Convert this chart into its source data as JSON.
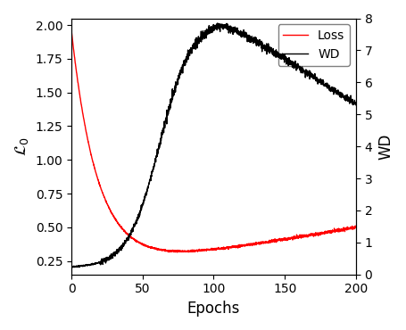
{
  "title": "",
  "xlabel": "Epochs",
  "ylabel_left": "$\\mathcal{L}_0$",
  "ylabel_right": "WD",
  "xlim": [
    0,
    200
  ],
  "ylim_left": [
    0.15,
    2.05
  ],
  "ylim_right": [
    0,
    8
  ],
  "left_yticks": [
    0.25,
    0.5,
    0.75,
    1.0,
    1.25,
    1.5,
    1.75,
    2.0
  ],
  "right_yticks": [
    0,
    1,
    2,
    3,
    4,
    5,
    6,
    7,
    8
  ],
  "xticks": [
    0,
    50,
    100,
    150,
    200
  ],
  "loss_color": "#ff0000",
  "wd_color": "#000000",
  "legend_labels": [
    "Loss",
    "WD"
  ],
  "n_epochs": 2001
}
